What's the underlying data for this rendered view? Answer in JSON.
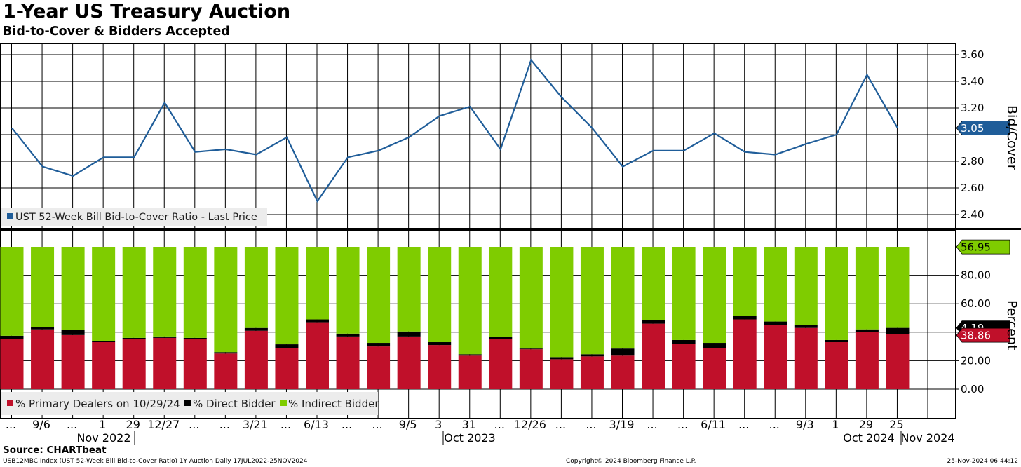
{
  "header": {
    "title": "1-Year US Treasury Auction",
    "subtitle": "Bid-to-Cover & Bidders Accepted"
  },
  "source": "Source: CHARTbeat",
  "footer": {
    "left": "USB12MBC Index (UST 52-Week Bill Bid-to-Cover Ratio) 1Y Auction  Daily 17JUL2022-25NOV2024",
    "center": "Copyright© 2024 Bloomberg Finance L.P.",
    "right": "25-Nov-2024 06:44:12"
  },
  "colors": {
    "line": "#1f5d99",
    "primary": "#c0102a",
    "direct": "#000000",
    "indirect": "#7fcc00",
    "grid": "#000000"
  },
  "chart_data": [
    {
      "type": "line",
      "ylabel": "Bid/Cover",
      "ylim": [
        2.3,
        3.66
      ],
      "yticks": [
        "2.40",
        "2.60",
        "2.80",
        "3.20",
        "3.40",
        "3.60"
      ],
      "grid": true,
      "legend_position": "bottom-left",
      "last_value_label": "3.05",
      "series": [
        {
          "name": "UST 52-Week Bill Bid-to-Cover Ratio - Last Price",
          "values": [
            3.05,
            2.76,
            2.69,
            2.83,
            2.83,
            3.24,
            2.87,
            2.89,
            2.85,
            2.98,
            2.5,
            2.83,
            2.88,
            2.98,
            3.14,
            3.21,
            2.89,
            3.56,
            3.28,
            3.05,
            2.76,
            2.88,
            2.88,
            3.01,
            2.87,
            2.85,
            2.93,
            3.0,
            3.45,
            3.05
          ]
        }
      ]
    },
    {
      "type": "bar",
      "stacked": true,
      "ylabel": "Percent",
      "ylim": [
        -3,
        100
      ],
      "yticks": [
        "0.00",
        "20.00",
        "40.00",
        "60.00",
        "80.00"
      ],
      "grid": true,
      "legend_position": "bottom-left",
      "last_value_labels": {
        "indirect": "56.95",
        "direct": "4.19",
        "primary": "38.86"
      },
      "series": [
        {
          "name": "% Primary Dealers on 10/29/24",
          "key": "primary",
          "values": [
            35,
            42,
            38,
            33,
            35,
            36,
            35,
            25,
            41,
            29,
            47,
            37,
            30,
            37,
            31,
            24,
            35,
            28,
            21,
            23,
            24,
            46,
            32,
            29,
            49,
            45,
            43,
            33,
            40,
            38.86
          ]
        },
        {
          "name": "% Direct Bidder",
          "key": "direct",
          "values": [
            2.5,
            1.5,
            3.5,
            1,
            1,
            1,
            1,
            1,
            2,
            2.5,
            2,
            2,
            2.5,
            3.5,
            2,
            0.5,
            1.5,
            0.5,
            1.5,
            1.5,
            4.5,
            2.5,
            2.5,
            3.5,
            2.5,
            2.5,
            2,
            1.5,
            2,
            4.19
          ]
        },
        {
          "name": "% Indirect Bidder",
          "key": "indirect",
          "values": [
            62.5,
            56.5,
            58.5,
            66,
            64,
            63,
            64,
            74,
            57,
            68.5,
            51,
            61,
            67.5,
            59.5,
            67,
            75.5,
            63.5,
            71.5,
            77.5,
            75.5,
            71.5,
            51.5,
            65.5,
            67.5,
            48.5,
            52.5,
            55,
            65.5,
            58,
            56.95
          ]
        }
      ]
    }
  ],
  "xaxis": {
    "tick_labels": [
      "...",
      "9/6",
      "...",
      "1",
      "29",
      "12/27",
      "...",
      "...",
      "3/21",
      "...",
      "6/13",
      "...",
      "...",
      "9/5",
      "3",
      "31",
      "...",
      "12/26",
      "...",
      "...",
      "3/19",
      "...",
      "...",
      "6/11",
      "...",
      "...",
      "9/3",
      "1",
      "29",
      "25"
    ],
    "period_labels": [
      "Nov 2022",
      "Oct 2023",
      "Oct 2024",
      "Nov 2024"
    ]
  }
}
